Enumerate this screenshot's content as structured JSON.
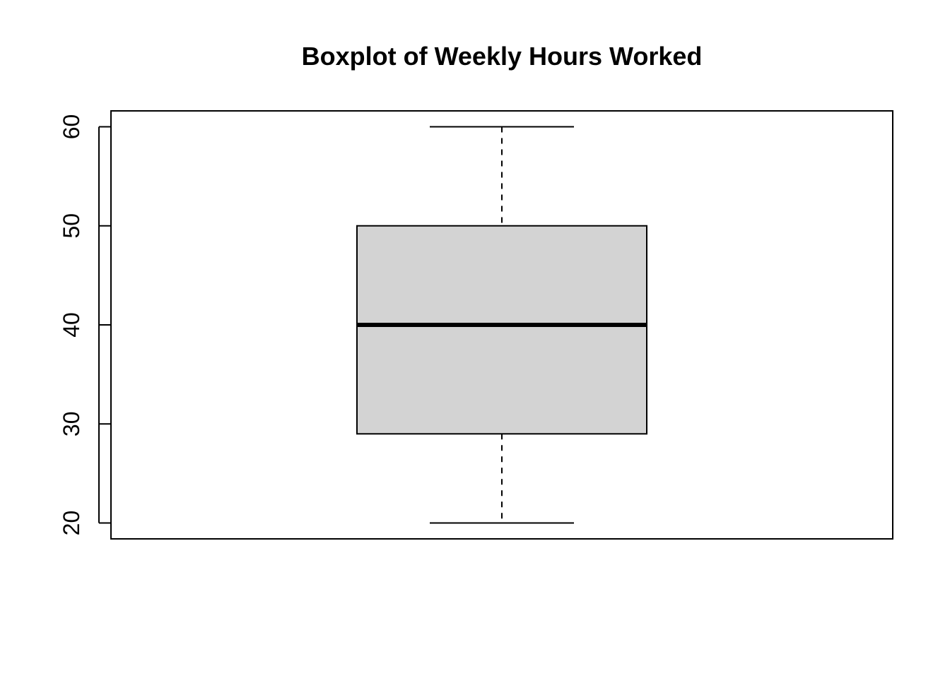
{
  "chart_data": {
    "type": "boxplot",
    "title": "Boxplot of Weekly Hours Worked",
    "xlabel": "",
    "ylabel": "",
    "ylim": [
      18.4,
      61.6
    ],
    "yticks": [
      20,
      30,
      40,
      50,
      60
    ],
    "ytick_labels": [
      "20",
      "30",
      "40",
      "50",
      "60"
    ],
    "grid": false,
    "legend": "none",
    "box": {
      "min": 20,
      "q1": 29,
      "median": 40,
      "q3": 50,
      "max": 60,
      "fill": "#d3d3d3"
    }
  }
}
